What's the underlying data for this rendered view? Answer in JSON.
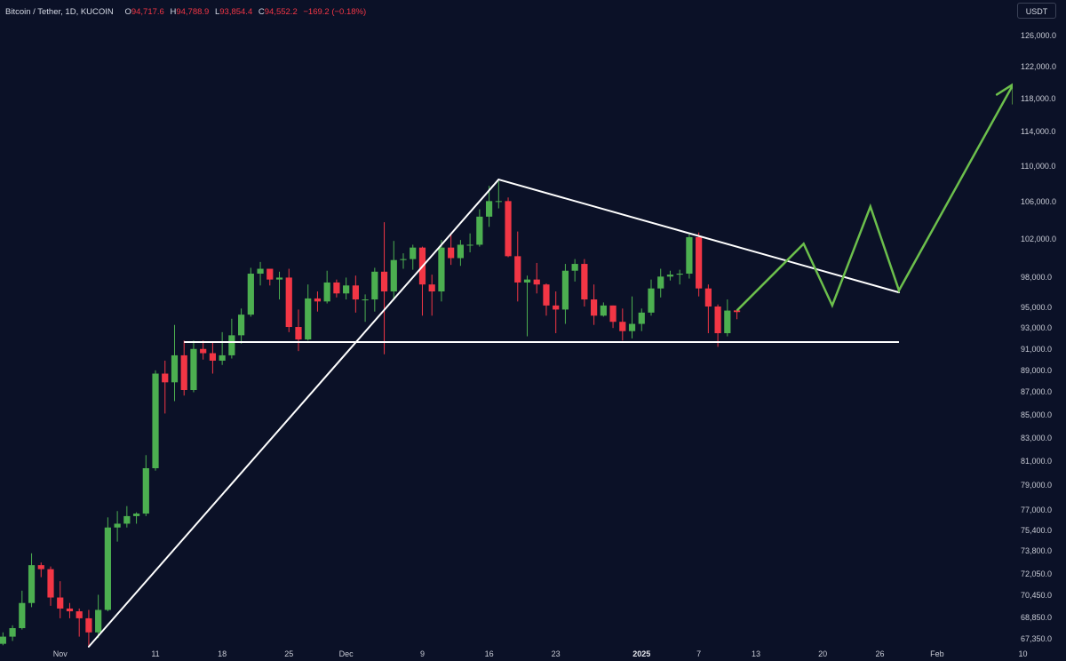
{
  "legend": {
    "symbol": "Bitcoin / Tether, 1D, KUCOIN",
    "open_label": "O",
    "open": "94,717.6",
    "high_label": "H",
    "high": "94,788.9",
    "low_label": "L",
    "low": "93,854.4",
    "close_label": "C",
    "close": "94,552.2",
    "change": "−169.2 (−0.18%)"
  },
  "currency_button": "USDT",
  "colors": {
    "up": "#4caf50",
    "down": "#f23645",
    "background": "#0b1127",
    "trendline": "#ffffff",
    "projection": "#6cbf4c"
  },
  "chart_data": {
    "type": "candlestick",
    "price_scale": "log",
    "y_ticks": [
      {
        "value": 126000,
        "label": "126,000.0"
      },
      {
        "value": 122000,
        "label": "122,000.0"
      },
      {
        "value": 118000,
        "label": "118,000.0"
      },
      {
        "value": 114000,
        "label": "114,000.0"
      },
      {
        "value": 110000,
        "label": "110,000.0"
      },
      {
        "value": 106000,
        "label": "106,000.0"
      },
      {
        "value": 102000,
        "label": "102,000.0"
      },
      {
        "value": 98000,
        "label": "98,000.0"
      },
      {
        "value": 95000,
        "label": "95,000.0"
      },
      {
        "value": 93000,
        "label": "93,000.0"
      },
      {
        "value": 91000,
        "label": "91,000.0"
      },
      {
        "value": 89000,
        "label": "89,000.0"
      },
      {
        "value": 87000,
        "label": "87,000.0"
      },
      {
        "value": 85000,
        "label": "85,000.0"
      },
      {
        "value": 83000,
        "label": "83,000.0"
      },
      {
        "value": 81000,
        "label": "81,000.0"
      },
      {
        "value": 79000,
        "label": "79,000.0"
      },
      {
        "value": 77000,
        "label": "77,000.0"
      },
      {
        "value": 75400,
        "label": "75,400.0"
      },
      {
        "value": 73800,
        "label": "73,800.0"
      },
      {
        "value": 72050,
        "label": "72,050.0"
      },
      {
        "value": 70450,
        "label": "70,450.0"
      },
      {
        "value": 68850,
        "label": "68,850.0"
      },
      {
        "value": 67350,
        "label": "67,350.0"
      }
    ],
    "x_ticks": [
      {
        "date": "2024-11-01",
        "label": "Nov",
        "bold": false
      },
      {
        "date": "2024-11-11",
        "label": "11",
        "bold": false
      },
      {
        "date": "2024-11-18",
        "label": "18",
        "bold": false
      },
      {
        "date": "2024-11-25",
        "label": "25",
        "bold": false
      },
      {
        "date": "2024-12-01",
        "label": "Dec",
        "bold": false
      },
      {
        "date": "2024-12-09",
        "label": "9",
        "bold": false
      },
      {
        "date": "2024-12-16",
        "label": "16",
        "bold": false
      },
      {
        "date": "2024-12-23",
        "label": "23",
        "bold": false
      },
      {
        "date": "2025-01-01",
        "label": "2025",
        "bold": true
      },
      {
        "date": "2025-01-07",
        "label": "7",
        "bold": false
      },
      {
        "date": "2025-01-13",
        "label": "13",
        "bold": false
      },
      {
        "date": "2025-01-20",
        "label": "20",
        "bold": false
      },
      {
        "date": "2025-01-26",
        "label": "26",
        "bold": false
      },
      {
        "date": "2025-02-01",
        "label": "Feb",
        "bold": false
      },
      {
        "date": "2025-02-10",
        "label": "10",
        "bold": false
      }
    ],
    "candles": [
      {
        "date": "2024-10-24",
        "o": 67300,
        "h": 68300,
        "l": 66900,
        "c": 68000
      },
      {
        "date": "2024-10-25",
        "o": 68000,
        "h": 68900,
        "l": 66800,
        "c": 67000
      },
      {
        "date": "2024-10-26",
        "o": 67000,
        "h": 67800,
        "l": 66900,
        "c": 67500
      },
      {
        "date": "2024-10-27",
        "o": 67500,
        "h": 68300,
        "l": 67200,
        "c": 68100
      },
      {
        "date": "2024-10-28",
        "o": 68100,
        "h": 70800,
        "l": 68000,
        "c": 69900
      },
      {
        "date": "2024-10-29",
        "o": 69900,
        "h": 73600,
        "l": 69600,
        "c": 72700
      },
      {
        "date": "2024-10-30",
        "o": 72700,
        "h": 72900,
        "l": 71800,
        "c": 72400
      },
      {
        "date": "2024-10-31",
        "o": 72400,
        "h": 72600,
        "l": 69700,
        "c": 70300
      },
      {
        "date": "2024-11-01",
        "o": 70300,
        "h": 71500,
        "l": 68800,
        "c": 69500
      },
      {
        "date": "2024-11-02",
        "o": 69500,
        "h": 69900,
        "l": 68800,
        "c": 69300
      },
      {
        "date": "2024-11-03",
        "o": 69300,
        "h": 69500,
        "l": 67500,
        "c": 68800
      },
      {
        "date": "2024-11-04",
        "o": 68800,
        "h": 69400,
        "l": 66800,
        "c": 67800
      },
      {
        "date": "2024-11-05",
        "o": 67800,
        "h": 70500,
        "l": 67400,
        "c": 69400
      },
      {
        "date": "2024-11-06",
        "o": 69400,
        "h": 76400,
        "l": 69300,
        "c": 75600
      },
      {
        "date": "2024-11-07",
        "o": 75600,
        "h": 76900,
        "l": 74500,
        "c": 75900
      },
      {
        "date": "2024-11-08",
        "o": 75900,
        "h": 77300,
        "l": 75600,
        "c": 76500
      },
      {
        "date": "2024-11-09",
        "o": 76500,
        "h": 76800,
        "l": 75900,
        "c": 76700
      },
      {
        "date": "2024-11-10",
        "o": 76700,
        "h": 81500,
        "l": 76500,
        "c": 80400
      },
      {
        "date": "2024-11-11",
        "o": 80400,
        "h": 89000,
        "l": 80200,
        "c": 88700
      },
      {
        "date": "2024-11-12",
        "o": 88700,
        "h": 89900,
        "l": 85100,
        "c": 87900
      },
      {
        "date": "2024-11-13",
        "o": 87900,
        "h": 93300,
        "l": 86200,
        "c": 90400
      },
      {
        "date": "2024-11-14",
        "o": 90400,
        "h": 91800,
        "l": 86700,
        "c": 87200
      },
      {
        "date": "2024-11-15",
        "o": 87200,
        "h": 91800,
        "l": 87000,
        "c": 91000
      },
      {
        "date": "2024-11-16",
        "o": 91000,
        "h": 91800,
        "l": 90000,
        "c": 90600
      },
      {
        "date": "2024-11-17",
        "o": 90600,
        "h": 91600,
        "l": 88700,
        "c": 89900
      },
      {
        "date": "2024-11-18",
        "o": 89900,
        "h": 92600,
        "l": 89500,
        "c": 90400
      },
      {
        "date": "2024-11-19",
        "o": 90400,
        "h": 93900,
        "l": 90100,
        "c": 92300
      },
      {
        "date": "2024-11-20",
        "o": 92300,
        "h": 94900,
        "l": 91500,
        "c": 94300
      },
      {
        "date": "2024-11-21",
        "o": 94300,
        "h": 99000,
        "l": 94100,
        "c": 98400
      },
      {
        "date": "2024-11-22",
        "o": 98400,
        "h": 99600,
        "l": 97200,
        "c": 98900
      },
      {
        "date": "2024-11-23",
        "o": 98900,
        "h": 98800,
        "l": 97200,
        "c": 97800
      },
      {
        "date": "2024-11-24",
        "o": 97800,
        "h": 98600,
        "l": 95800,
        "c": 98000
      },
      {
        "date": "2024-11-25",
        "o": 98000,
        "h": 98900,
        "l": 92600,
        "c": 93100
      },
      {
        "date": "2024-11-26",
        "o": 93100,
        "h": 94800,
        "l": 90800,
        "c": 91900
      },
      {
        "date": "2024-11-27",
        "o": 91900,
        "h": 97300,
        "l": 91800,
        "c": 95900
      },
      {
        "date": "2024-11-28",
        "o": 95900,
        "h": 96600,
        "l": 94600,
        "c": 95600
      },
      {
        "date": "2024-11-29",
        "o": 95600,
        "h": 98700,
        "l": 95400,
        "c": 97500
      },
      {
        "date": "2024-11-30",
        "o": 97500,
        "h": 97800,
        "l": 96000,
        "c": 96400
      },
      {
        "date": "2024-12-01",
        "o": 96400,
        "h": 98000,
        "l": 95800,
        "c": 97200
      },
      {
        "date": "2024-12-02",
        "o": 97200,
        "h": 98200,
        "l": 94500,
        "c": 95800
      },
      {
        "date": "2024-12-03",
        "o": 95800,
        "h": 96300,
        "l": 93600,
        "c": 95800
      },
      {
        "date": "2024-12-04",
        "o": 95800,
        "h": 99000,
        "l": 94600,
        "c": 98600
      },
      {
        "date": "2024-12-05",
        "o": 98600,
        "h": 103800,
        "l": 90500,
        "c": 96600
      },
      {
        "date": "2024-12-06",
        "o": 96600,
        "h": 101800,
        "l": 95700,
        "c": 99800
      },
      {
        "date": "2024-12-07",
        "o": 99800,
        "h": 100500,
        "l": 98900,
        "c": 99900
      },
      {
        "date": "2024-12-08",
        "o": 99900,
        "h": 101400,
        "l": 98800,
        "c": 101100
      },
      {
        "date": "2024-12-09",
        "o": 101100,
        "h": 101200,
        "l": 94200,
        "c": 97300
      },
      {
        "date": "2024-12-10",
        "o": 97300,
        "h": 98300,
        "l": 94200,
        "c": 96600
      },
      {
        "date": "2024-12-11",
        "o": 96600,
        "h": 101900,
        "l": 95600,
        "c": 101100
      },
      {
        "date": "2024-12-12",
        "o": 101100,
        "h": 102500,
        "l": 99300,
        "c": 100000
      },
      {
        "date": "2024-12-13",
        "o": 100000,
        "h": 101900,
        "l": 99200,
        "c": 101400
      },
      {
        "date": "2024-12-14",
        "o": 101400,
        "h": 102600,
        "l": 100600,
        "c": 101400
      },
      {
        "date": "2024-12-15",
        "o": 101400,
        "h": 105200,
        "l": 101200,
        "c": 104400
      },
      {
        "date": "2024-12-16",
        "o": 104400,
        "h": 107800,
        "l": 103300,
        "c": 106100
      },
      {
        "date": "2024-12-17",
        "o": 106100,
        "h": 108300,
        "l": 105300,
        "c": 106100
      },
      {
        "date": "2024-12-18",
        "o": 106100,
        "h": 106500,
        "l": 100100,
        "c": 100200
      },
      {
        "date": "2024-12-19",
        "o": 100200,
        "h": 102800,
        "l": 95600,
        "c": 97500
      },
      {
        "date": "2024-12-20",
        "o": 97500,
        "h": 98200,
        "l": 92200,
        "c": 97800
      },
      {
        "date": "2024-12-21",
        "o": 97800,
        "h": 99500,
        "l": 96400,
        "c": 97300
      },
      {
        "date": "2024-12-22",
        "o": 97300,
        "h": 97400,
        "l": 94200,
        "c": 95200
      },
      {
        "date": "2024-12-23",
        "o": 95200,
        "h": 96600,
        "l": 92500,
        "c": 94800
      },
      {
        "date": "2024-12-24",
        "o": 94800,
        "h": 99400,
        "l": 93400,
        "c": 98700
      },
      {
        "date": "2024-12-25",
        "o": 98700,
        "h": 99900,
        "l": 97600,
        "c": 99400
      },
      {
        "date": "2024-12-26",
        "o": 99400,
        "h": 99900,
        "l": 95100,
        "c": 95800
      },
      {
        "date": "2024-12-27",
        "o": 95800,
        "h": 97300,
        "l": 93300,
        "c": 94200
      },
      {
        "date": "2024-12-28",
        "o": 94200,
        "h": 95500,
        "l": 94100,
        "c": 95200
      },
      {
        "date": "2024-12-29",
        "o": 95200,
        "h": 95200,
        "l": 93000,
        "c": 93600
      },
      {
        "date": "2024-12-30",
        "o": 93600,
        "h": 94900,
        "l": 91800,
        "c": 92700
      },
      {
        "date": "2024-12-31",
        "o": 92700,
        "h": 96100,
        "l": 92000,
        "c": 93400
      },
      {
        "date": "2025-01-01",
        "o": 93400,
        "h": 94900,
        "l": 92700,
        "c": 94500
      },
      {
        "date": "2025-01-02",
        "o": 94500,
        "h": 97800,
        "l": 94200,
        "c": 96900
      },
      {
        "date": "2025-01-03",
        "o": 96900,
        "h": 98900,
        "l": 96000,
        "c": 98100
      },
      {
        "date": "2025-01-04",
        "o": 98100,
        "h": 98700,
        "l": 97700,
        "c": 98300
      },
      {
        "date": "2025-01-05",
        "o": 98300,
        "h": 98800,
        "l": 97300,
        "c": 98400
      },
      {
        "date": "2025-01-06",
        "o": 98400,
        "h": 102500,
        "l": 97900,
        "c": 102200
      },
      {
        "date": "2025-01-07",
        "o": 102200,
        "h": 102700,
        "l": 96100,
        "c": 96900
      },
      {
        "date": "2025-01-08",
        "o": 96900,
        "h": 97300,
        "l": 92500,
        "c": 95100
      },
      {
        "date": "2025-01-09",
        "o": 95100,
        "h": 95300,
        "l": 91200,
        "c": 92500
      },
      {
        "date": "2025-01-10",
        "o": 92500,
        "h": 95800,
        "l": 92200,
        "c": 94700
      },
      {
        "date": "2025-01-11",
        "o": 94717.6,
        "h": 94788.9,
        "l": 93854.4,
        "c": 94552.2
      }
    ],
    "annotations": [
      {
        "type": "trendline",
        "points": [
          {
            "date": "2024-11-04",
            "price": 66800
          },
          {
            "date": "2024-12-17",
            "price": 108500
          }
        ]
      },
      {
        "type": "trendline",
        "points": [
          {
            "date": "2024-12-17",
            "price": 108500
          },
          {
            "date": "2025-01-28",
            "price": 96500
          }
        ]
      },
      {
        "type": "horizontal-line",
        "price": 91650,
        "from": "2024-11-14",
        "to": "2025-01-28"
      },
      {
        "type": "projection-path",
        "points": [
          {
            "date": "2025-01-11",
            "price": 94700
          },
          {
            "date": "2025-01-18",
            "price": 101500
          },
          {
            "date": "2025-01-21",
            "price": 95200
          },
          {
            "date": "2025-01-25",
            "price": 105500
          },
          {
            "date": "2025-01-28",
            "price": 96700
          },
          {
            "date": "2025-02-09",
            "price": 119800
          }
        ]
      }
    ],
    "legend": "none",
    "grid": false
  }
}
